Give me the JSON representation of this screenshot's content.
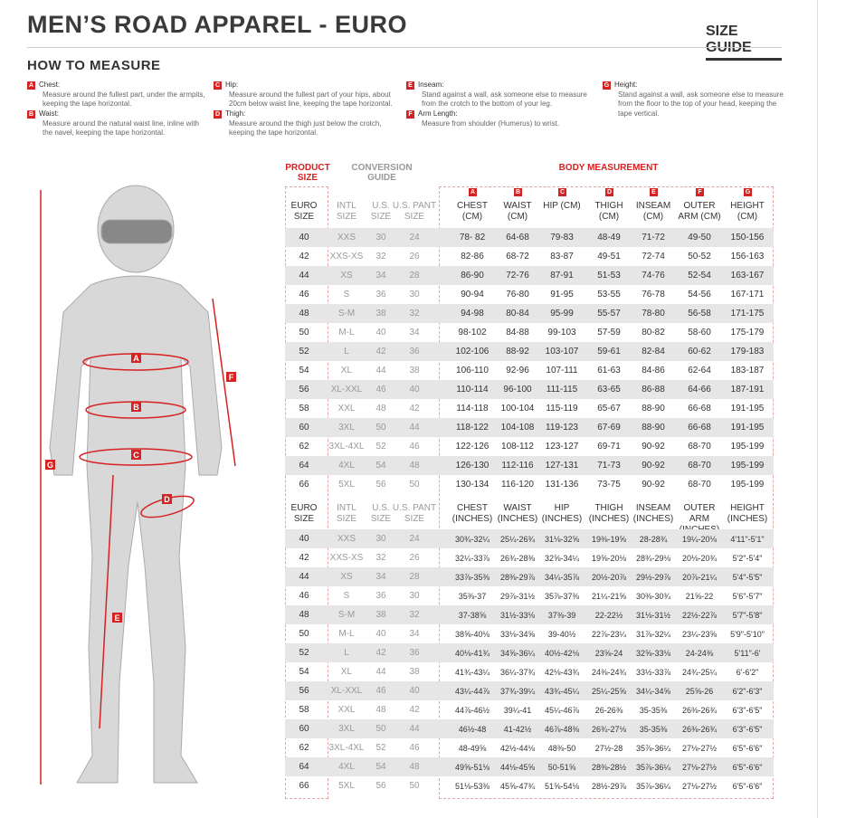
{
  "title": "MEN’S ROAD APPAREL - EURO",
  "size_guide": "SIZE GUIDE",
  "how_to_measure": "HOW TO MEASURE",
  "instructions": [
    {
      "letter": "A",
      "label": "Chest:",
      "text": "Measure around the fullest part, under the armpits, keeping the tape horizontal."
    },
    {
      "letter": "B",
      "label": "Waist:",
      "text": "Measure around the natural waist line, inline with the navel, keeping the tape horizontal."
    },
    {
      "letter": "C",
      "label": "Hip:",
      "text": "Measure around the fullest part of your hips, about 20cm below waist line, keeping the tape horizontal."
    },
    {
      "letter": "D",
      "label": "Thigh:",
      "text": "Measure around the thigh just below the crotch, keeping the tape horizontal."
    },
    {
      "letter": "E",
      "label": "Inseam:",
      "text": "Stand against a wall, ask someone else to measure from the crotch to the bottom of your leg."
    },
    {
      "letter": "F",
      "label": "Arm Length:",
      "text": "Measure from shoulder (Humerus) to wrist."
    },
    {
      "letter": "G",
      "label": "Height:",
      "text": "Stand against a wall, ask someone else to measure from the floor to the top of your head, keeping the tape vertical."
    }
  ],
  "accent": "#d62222",
  "table": {
    "product_size": "PRODUCT SIZE",
    "conversion_guide": "CONVERSION GUIDE",
    "body_measurement": "BODY MEASUREMENT",
    "cm_headers": [
      "EURO SIZE",
      "INTL SIZE",
      "U.S. SIZE",
      "U.S. PANT SIZE",
      "CHEST (CM)",
      "WAIST (CM)",
      "HIP (CM)",
      "THIGH (CM)",
      "INSEAM (CM)",
      "OUTER ARM (CM)",
      "HEIGHT (CM)"
    ],
    "in_headers": [
      "EURO SIZE",
      "INTL SIZE",
      "U.S. SIZE",
      "U.S. PANT SIZE",
      "CHEST (INCHES)",
      "WAIST (INCHES)",
      "HIP (INCHES)",
      "THIGH (INCHES)",
      "INSEAM (INCHES)",
      "OUTER ARM (INCHES)",
      "HEIGHT (INCHES)"
    ],
    "letters": [
      "A",
      "B",
      "C",
      "D",
      "E",
      "F",
      "G"
    ],
    "cm_rows": [
      [
        "40",
        "XXS",
        "30",
        "24",
        "78- 82",
        "64-68",
        "79-83",
        "48-49",
        "71-72",
        "49-50",
        "150-156"
      ],
      [
        "42",
        "XXS-XS",
        "32",
        "26",
        "82-86",
        "68-72",
        "83-87",
        "49-51",
        "72-74",
        "50-52",
        "156-163"
      ],
      [
        "44",
        "XS",
        "34",
        "28",
        "86-90",
        "72-76",
        "87-91",
        "51-53",
        "74-76",
        "52-54",
        "163-167"
      ],
      [
        "46",
        "S",
        "36",
        "30",
        "90-94",
        "76-80",
        "91-95",
        "53-55",
        "76-78",
        "54-56",
        "167-171"
      ],
      [
        "48",
        "S-M",
        "38",
        "32",
        "94-98",
        "80-84",
        "95-99",
        "55-57",
        "78-80",
        "56-58",
        "171-175"
      ],
      [
        "50",
        "M-L",
        "40",
        "34",
        "98-102",
        "84-88",
        "99-103",
        "57-59",
        "80-82",
        "58-60",
        "175-179"
      ],
      [
        "52",
        "L",
        "42",
        "36",
        "102-106",
        "88-92",
        "103-107",
        "59-61",
        "82-84",
        "60-62",
        "179-183"
      ],
      [
        "54",
        "XL",
        "44",
        "38",
        "106-110",
        "92-96",
        "107-111",
        "61-63",
        "84-86",
        "62-64",
        "183-187"
      ],
      [
        "56",
        "XL-XXL",
        "46",
        "40",
        "110-114",
        "96-100",
        "111-115",
        "63-65",
        "86-88",
        "64-66",
        "187-191"
      ],
      [
        "58",
        "XXL",
        "48",
        "42",
        "114-118",
        "100-104",
        "115-119",
        "65-67",
        "88-90",
        "66-68",
        "191-195"
      ],
      [
        "60",
        "3XL",
        "50",
        "44",
        "118-122",
        "104-108",
        "119-123",
        "67-69",
        "88-90",
        "66-68",
        "191-195"
      ],
      [
        "62",
        "3XL-4XL",
        "52",
        "46",
        "122-126",
        "108-112",
        "123-127",
        "69-71",
        "90-92",
        "68-70",
        "195-199"
      ],
      [
        "64",
        "4XL",
        "54",
        "48",
        "126-130",
        "112-116",
        "127-131",
        "71-73",
        "90-92",
        "68-70",
        "195-199"
      ],
      [
        "66",
        "5XL",
        "56",
        "50",
        "130-134",
        "116-120",
        "131-136",
        "73-75",
        "90-92",
        "68-70",
        "195-199"
      ]
    ],
    "in_rows": [
      [
        "40",
        "XXS",
        "30",
        "24",
        "30¾-32¼",
        "25¼-26¾",
        "31⅛-32⅝",
        "19⅜-19⅝",
        "28-28¾",
        "19¼-20⅛",
        "4'11\"-5'1\""
      ],
      [
        "42",
        "XXS-XS",
        "32",
        "26",
        "32¼-33⅞",
        "26¾-28⅜",
        "32⅝-34¼",
        "19⅝-20⅛",
        "28¾-29⅛",
        "20⅛-20¾",
        "5'2\"-5'4\""
      ],
      [
        "44",
        "XS",
        "34",
        "28",
        "33⅞-35⅜",
        "28⅜-29⅞",
        "34¼-35⅞",
        "20½-20⅞",
        "29½-29⅞",
        "20⅞-21¼",
        "5'4\"-5'5\""
      ],
      [
        "46",
        "S",
        "36",
        "30",
        "35⅜-37",
        "29⅞-31½",
        "35⅞-37⅜",
        "21¼-21⅝",
        "30⅜-30¾",
        "21⅝-22",
        "5'6\"-5'7\""
      ],
      [
        "48",
        "S-M",
        "38",
        "32",
        "37-38⅝",
        "31½-33⅛",
        "37⅜-39",
        "22-22½",
        "31⅛-31½",
        "22½-22⅞",
        "5'7\"-5'8\""
      ],
      [
        "50",
        "M-L",
        "40",
        "34",
        "38⅝-40⅛",
        "33⅛-34⅝",
        "39-40½",
        "22⅞-23¼",
        "31⅞-32¼",
        "23¼-23⅝",
        "5'9\"-5'10\""
      ],
      [
        "52",
        "L",
        "42",
        "36",
        "40⅛-41¾",
        "34⅝-36¼",
        "40½-42⅛",
        "23⅝-24",
        "32⅝-33⅛",
        "24-24⅜",
        "5'11\"-6'"
      ],
      [
        "54",
        "XL",
        "44",
        "38",
        "41¾-43¼",
        "36¼-37¾",
        "42⅛-43¾",
        "24⅜-24¾",
        "33½-33⅞",
        "24¾-25¼",
        "6'-6'2\""
      ],
      [
        "56",
        "XL-XXL",
        "46",
        "40",
        "43¼-44⅞",
        "37¾-39¼",
        "43¾-45¼",
        "25¼-25⅝",
        "34¼-34⅝",
        "25⅝-26",
        "6'2\"-6'3\""
      ],
      [
        "58",
        "XXL",
        "48",
        "42",
        "44⅞-46½",
        "39¼-41",
        "45¼-46⅞",
        "26-26⅜",
        "35-35⅜",
        "26⅜-26¾",
        "6'3\"-6'5\""
      ],
      [
        "60",
        "3XL",
        "50",
        "44",
        "46½-48",
        "41-42½",
        "46⅞-48⅜",
        "26¾-27⅛",
        "35-35⅜",
        "26⅜-26¾",
        "6'3\"-6'5\""
      ],
      [
        "62",
        "3XL-4XL",
        "52",
        "46",
        "48-49⅝",
        "42½-44⅛",
        "48⅜-50",
        "27½-28",
        "35⅞-36¼",
        "27⅛-27½",
        "6'5\"-6'6\""
      ],
      [
        "64",
        "4XL",
        "54",
        "48",
        "49⅝-51⅛",
        "44⅛-45⅝",
        "50-51⅝",
        "28⅜-28½",
        "35⅞-36¼",
        "27⅛-27½",
        "6'5\"-6'6\""
      ],
      [
        "66",
        "5XL",
        "56",
        "50",
        "51⅛-53⅜",
        "45⅝-47¾",
        "51⅝-54⅛",
        "28½-29⅞",
        "35⅞-36¼",
        "27⅛-27½",
        "6'5\"-6'6\""
      ]
    ]
  }
}
